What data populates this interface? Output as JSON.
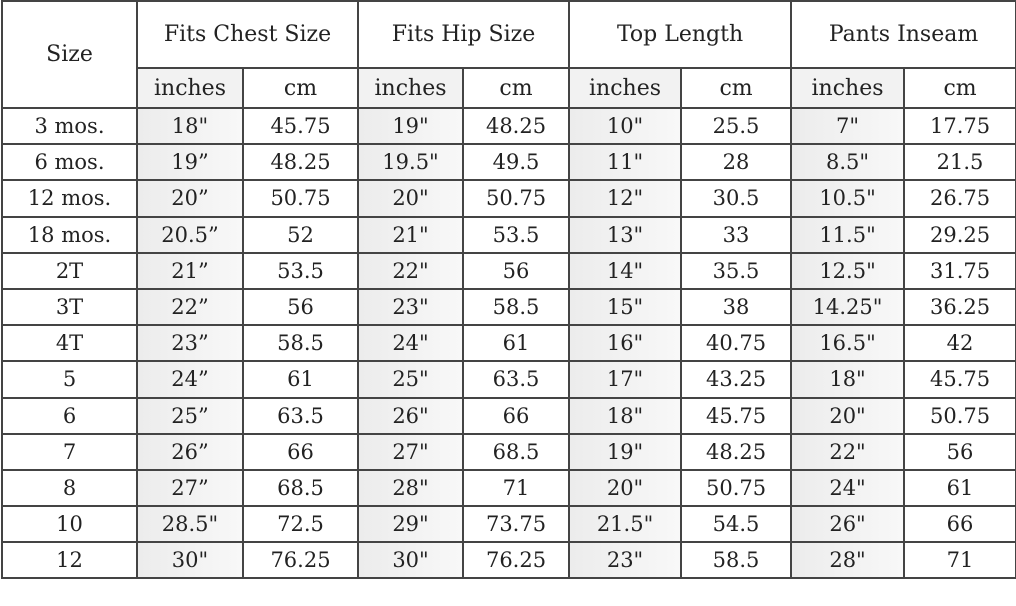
{
  "table": {
    "size_header": "Size",
    "groups": [
      "Fits Chest Size",
      "Fits Hip Size",
      "Top Length",
      "Pants Inseam"
    ],
    "units": [
      "inches",
      "cm"
    ],
    "rows": [
      [
        "3 mos.",
        "18\"",
        "45.75",
        "19\"",
        "48.25",
        "10\"",
        "25.5",
        "7\"",
        "17.75"
      ],
      [
        "6 mos.",
        "19”",
        "48.25",
        "19.5\"",
        "49.5",
        "11\"",
        "28",
        "8.5\"",
        "21.5"
      ],
      [
        "12 mos.",
        "20”",
        "50.75",
        "20\"",
        "50.75",
        "12\"",
        "30.5",
        "10.5\"",
        "26.75"
      ],
      [
        "18 mos.",
        "20.5”",
        "52",
        "21\"",
        "53.5",
        "13\"",
        "33",
        "11.5\"",
        "29.25"
      ],
      [
        "2T",
        "21”",
        "53.5",
        "22\"",
        "56",
        "14\"",
        "35.5",
        "12.5\"",
        "31.75"
      ],
      [
        "3T",
        "22”",
        "56",
        "23\"",
        "58.5",
        "15\"",
        "38",
        "14.25\"",
        "36.25"
      ],
      [
        "4T",
        "23”",
        "58.5",
        "24\"",
        "61",
        "16\"",
        "40.75",
        "16.5\"",
        "42"
      ],
      [
        "5",
        "24”",
        "61",
        "25\"",
        "63.5",
        "17\"",
        "43.25",
        "18\"",
        "45.75"
      ],
      [
        "6",
        "25”",
        "63.5",
        "26\"",
        "66",
        "18\"",
        "45.75",
        "20\"",
        "50.75"
      ],
      [
        "7",
        "26”",
        "66",
        "27\"",
        "68.5",
        "19\"",
        "48.25",
        "22\"",
        "56"
      ],
      [
        "8",
        "27”",
        "68.5",
        "28\"",
        "71",
        "20\"",
        "50.75",
        "24\"",
        "61"
      ],
      [
        "10",
        "28.5\"",
        "72.5",
        "29\"",
        "73.75",
        "21.5\"",
        "54.5",
        "26\"",
        "66"
      ],
      [
        "12",
        "30\"",
        "76.25",
        "30\"",
        "76.25",
        "23\"",
        "58.5",
        "28\"",
        "71"
      ]
    ]
  }
}
